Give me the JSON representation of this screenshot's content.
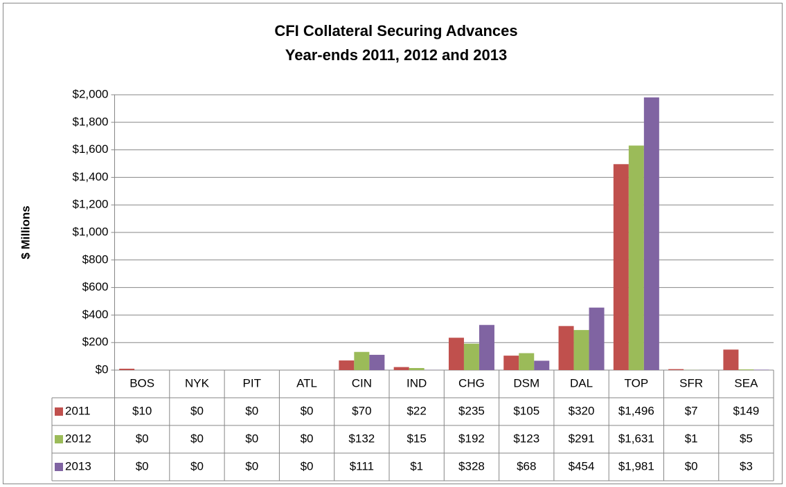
{
  "chart_data": {
    "type": "bar",
    "title": "CFI Collateral Securing Advances",
    "subtitle": "Year-ends 2011, 2012 and 2013",
    "y_label": "$ Millions",
    "categories": [
      "BOS",
      "NYK",
      "PIT",
      "ATL",
      "CIN",
      "IND",
      "CHG",
      "DSM",
      "DAL",
      "TOP",
      "SFR",
      "SEA"
    ],
    "series": [
      {
        "name": "2011",
        "color": "#c0504d",
        "values": [
          10,
          0,
          0,
          0,
          70,
          22,
          235,
          105,
          320,
          1496,
          7,
          149
        ],
        "value_labels": [
          "$10",
          "$0",
          "$0",
          "$0",
          "$70",
          "$22",
          "$235",
          "$105",
          "$320",
          "$1,496",
          "$7",
          "$149"
        ]
      },
      {
        "name": "2012",
        "color": "#9bbb59",
        "values": [
          0,
          0,
          0,
          0,
          132,
          15,
          192,
          123,
          291,
          1631,
          1,
          5
        ],
        "value_labels": [
          "$0",
          "$0",
          "$0",
          "$0",
          "$132",
          "$15",
          "$192",
          "$123",
          "$291",
          "$1,631",
          "$1",
          "$5"
        ]
      },
      {
        "name": "2013",
        "color": "#8064a2",
        "values": [
          0,
          0,
          0,
          0,
          111,
          1,
          328,
          68,
          454,
          1981,
          0,
          3
        ],
        "value_labels": [
          "$0",
          "$0",
          "$0",
          "$0",
          "$111",
          "$1",
          "$328",
          "$68",
          "$454",
          "$1,981",
          "$0",
          "$3"
        ]
      }
    ],
    "ylim": [
      0,
      2000
    ],
    "yticks": [
      {
        "value": 0,
        "label": "$0"
      },
      {
        "value": 200,
        "label": "$200"
      },
      {
        "value": 400,
        "label": "$400"
      },
      {
        "value": 600,
        "label": "$600"
      },
      {
        "value": 800,
        "label": "$800"
      },
      {
        "value": 1000,
        "label": "$1,000"
      },
      {
        "value": 1200,
        "label": "$1,200"
      },
      {
        "value": 1400,
        "label": "$1,400"
      },
      {
        "value": 1600,
        "label": "$1,600"
      },
      {
        "value": 1800,
        "label": "$1,800"
      },
      {
        "value": 2000,
        "label": "$2,000"
      }
    ],
    "grid": true
  }
}
